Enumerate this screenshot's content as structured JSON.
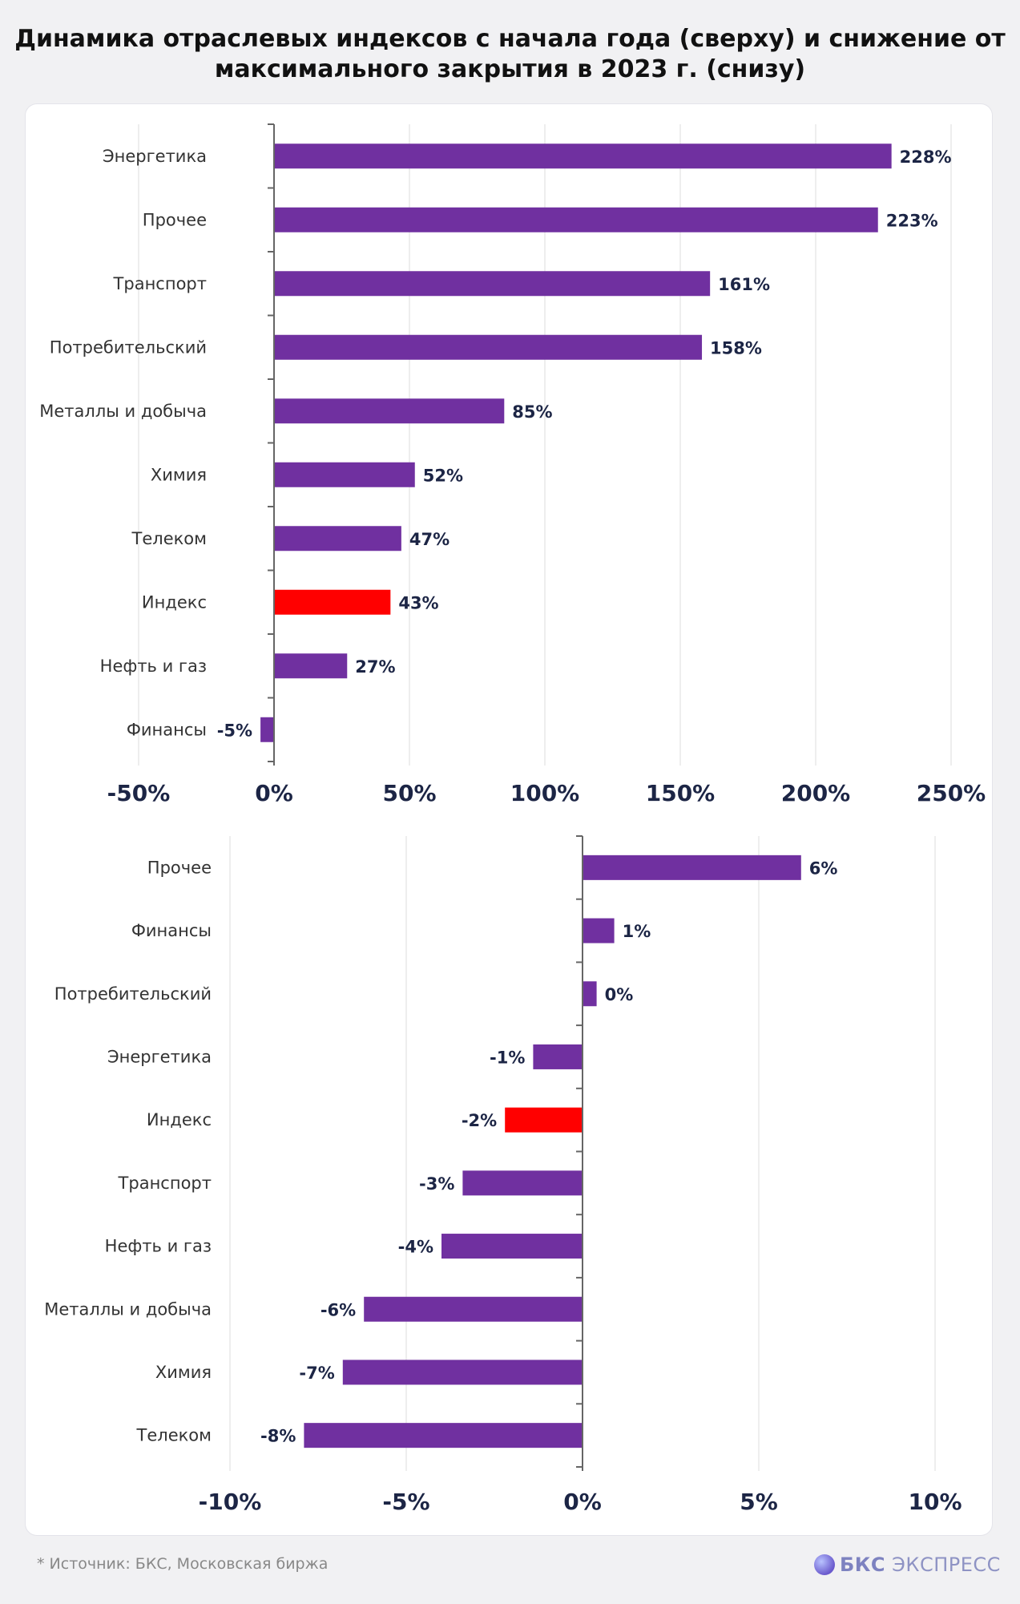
{
  "title": "Динамика отраслевых индексов с начала года (сверху) и снижение от максимального закрытия в 2023 г. (снизу)",
  "colors": {
    "bar": "#7030A0",
    "highlight": "#FF0000"
  },
  "chart_data": [
    {
      "type": "bar",
      "orientation": "horizontal",
      "categories": [
        "Энергетика",
        "Прочее",
        "Транспорт",
        "Потребительский",
        "Металлы и добыча",
        "Химия",
        "Телеком",
        "Индекс",
        "Нефть и газ",
        "Финансы"
      ],
      "values": [
        228,
        223,
        161,
        158,
        85,
        52,
        47,
        43,
        27,
        -5
      ],
      "value_labels": [
        "228%",
        "223%",
        "161%",
        "158%",
        "85%",
        "52%",
        "47%",
        "43%",
        "27%",
        "-5%"
      ],
      "highlight": "Индекс",
      "xlim": [
        -50,
        250
      ],
      "xticks": [
        -50,
        0,
        50,
        100,
        150,
        200,
        250
      ],
      "xtick_labels": [
        "-50%",
        "0%",
        "50%",
        "100%",
        "150%",
        "200%",
        "250%"
      ],
      "grid": true
    },
    {
      "type": "bar",
      "orientation": "horizontal",
      "categories": [
        "Прочее",
        "Финансы",
        "Потребительский",
        "Энергетика",
        "Индекс",
        "Транспорт",
        "Нефть и газ",
        "Металлы и добыча",
        "Химия",
        "Телеком"
      ],
      "values": [
        6.2,
        0.9,
        0.4,
        -1.4,
        -2.2,
        -3.4,
        -4.0,
        -6.2,
        -6.8,
        -7.9
      ],
      "value_labels": [
        "6%",
        "1%",
        "0%",
        "-1%",
        "-2%",
        "-3%",
        "-4%",
        "-6%",
        "-7%",
        "-8%"
      ],
      "highlight": "Индекс",
      "xlim": [
        -10,
        10
      ],
      "xticks": [
        -10,
        -5,
        0,
        5,
        10
      ],
      "xtick_labels": [
        "-10%",
        "-5%",
        "0%",
        "5%",
        "10%"
      ],
      "grid": true
    }
  ],
  "footer": {
    "note": "*  Источник: БКС, Московская биржа",
    "logo_bold": "БКС",
    "logo_text": "ЭКСПРЕСС"
  }
}
